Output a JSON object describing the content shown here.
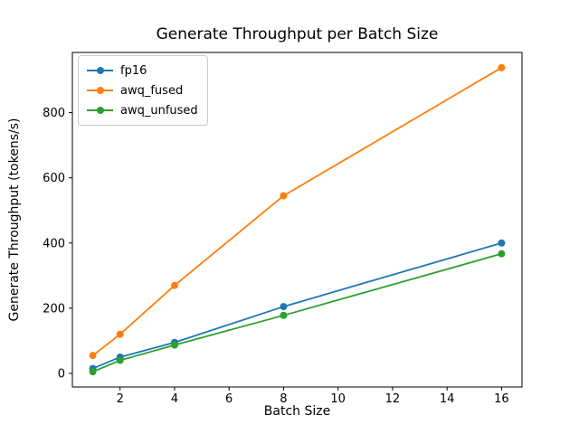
{
  "title": "Generate Throughput per Batch Size",
  "xlabel": "Batch Size",
  "ylabel": "Generate Throughput (tokens/s)",
  "chart_data": {
    "type": "line",
    "x": [
      1,
      2,
      4,
      8,
      16
    ],
    "series": [
      {
        "name": "fp16",
        "color": "#1f77b4",
        "values": [
          15,
          50,
          95,
          205,
          400
        ]
      },
      {
        "name": "awq_fused",
        "color": "#ff7f0e",
        "values": [
          55,
          120,
          270,
          545,
          938
        ]
      },
      {
        "name": "awq_unfused",
        "color": "#2ca02c",
        "values": [
          5,
          40,
          87,
          178,
          367
        ]
      }
    ],
    "xticks": [
      2,
      4,
      6,
      8,
      10,
      12,
      14,
      16
    ],
    "yticks": [
      0,
      200,
      400,
      600,
      800
    ],
    "xlim": [
      0.25,
      16.75
    ],
    "ylim": [
      -41.65,
      984.65
    ],
    "grid": false,
    "legend_position": "upper left",
    "marker": "circle"
  }
}
